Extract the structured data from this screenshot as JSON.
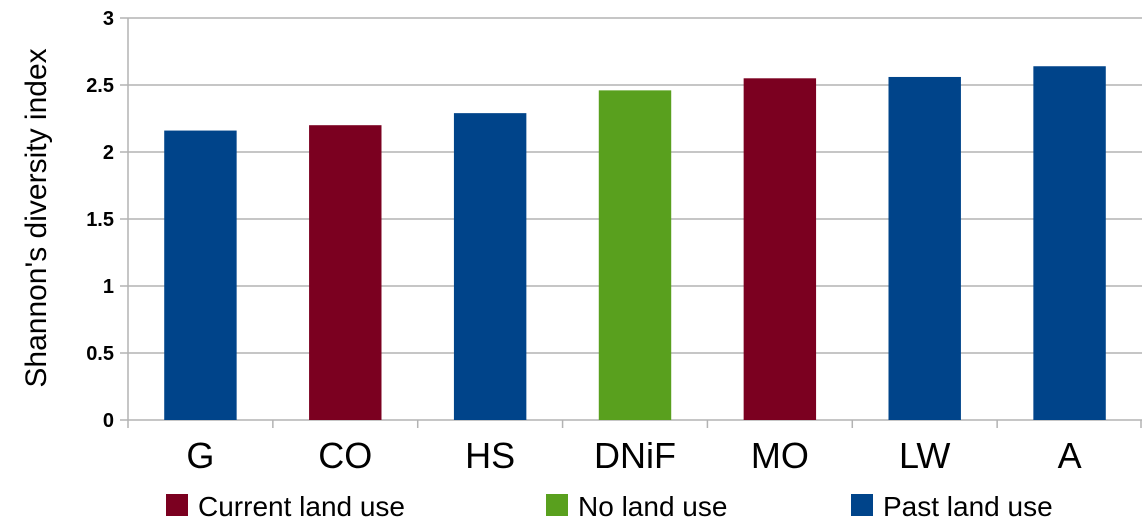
{
  "chart_data": {
    "type": "bar",
    "title": "",
    "xlabel": "",
    "ylabel": "Shannon's diversity index",
    "ylim": [
      0,
      3
    ],
    "yticks": [
      "0",
      "0.5",
      "1",
      "1.5",
      "2",
      "2.5",
      "3"
    ],
    "grid": true,
    "legend_position": "bottom",
    "categories": [
      "G",
      "CO",
      "HS",
      "DNiF",
      "MO",
      "LW",
      "A"
    ],
    "values": [
      2.16,
      2.2,
      2.29,
      2.46,
      2.55,
      2.56,
      2.64
    ],
    "bar_groups": [
      "Past land use",
      "Current land use",
      "Past land use",
      "No land use",
      "Current land use",
      "Past land use",
      "Past land use"
    ],
    "legend": [
      {
        "label": "Current land use",
        "color": "#7b0020"
      },
      {
        "label": "No land use",
        "color": "#59a01e"
      },
      {
        "label": "Past land use",
        "color": "#00448a"
      }
    ]
  }
}
